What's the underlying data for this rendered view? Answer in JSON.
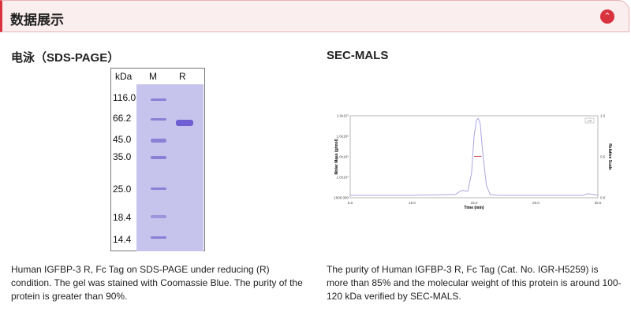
{
  "header": {
    "title": "数据展示",
    "toggle_icon": "chevron-up-icon",
    "accent": "#d9333f"
  },
  "sds": {
    "title": "电泳（SDS-PAGE）",
    "gel": {
      "unit_label": "kDa",
      "lanes": [
        "M",
        "R"
      ],
      "markers": [
        "116.0",
        "66.2",
        "45.0",
        "35.0",
        "25.0",
        "18.4",
        "14.4"
      ]
    },
    "caption": "Human IGFBP-3 R, Fc Tag on SDS-PAGE under reducing (R) condition. The gel was stained with Coomassie Blue. The purity of the protein is greater than 90%."
  },
  "secmals": {
    "title": "SEC-MALS",
    "caption": "The purity of Human IGFBP-3 R, Fc Tag (Cat. No. IGR-H5259) is more than 85% and the molecular weight of this protein is around 100-120 kDa verified by SEC-MALS."
  },
  "chart_data": {
    "type": "line",
    "xlabel": "Time (min)",
    "ylabel": "Molar Mass (g/mol)",
    "y2label": "Relative Scale",
    "xlim": [
      5,
      25
    ],
    "xticks": [
      "5.0",
      "10.0",
      "15.0",
      "20.0",
      "25.0"
    ],
    "yscale": "log",
    "yticks": [
      "1000.000",
      "1.0x10⁴",
      "1.0x10⁵",
      "1.0x10⁶",
      "1.0x10⁷"
    ],
    "y2lim": [
      0,
      1
    ],
    "y2ticks": [
      "0.0",
      "0.5",
      "1.0"
    ],
    "legend": "LS",
    "legend_position": "top-right",
    "series": [
      {
        "color": "#a9a6e0",
        "axis": "y2",
        "x": [
          5,
          10,
          13.5,
          14,
          14.5,
          14.8,
          15,
          15.2,
          15.35,
          15.5,
          15.7,
          16,
          16.3,
          17,
          20,
          23.8,
          24.2,
          25
        ],
        "y": [
          0.03,
          0.03,
          0.04,
          0.09,
          0.08,
          0.3,
          0.75,
          0.95,
          0.97,
          0.9,
          0.55,
          0.15,
          0.04,
          0.03,
          0.03,
          0.03,
          0.05,
          0.03
        ]
      },
      {
        "color": "#d9333f",
        "axis": "y",
        "x": [
          15.0,
          15.1,
          15.2,
          15.3,
          15.4,
          15.5,
          15.6
        ],
        "y": [
          105000,
          105000,
          105000,
          105000,
          105000,
          105000,
          105000
        ]
      }
    ]
  }
}
